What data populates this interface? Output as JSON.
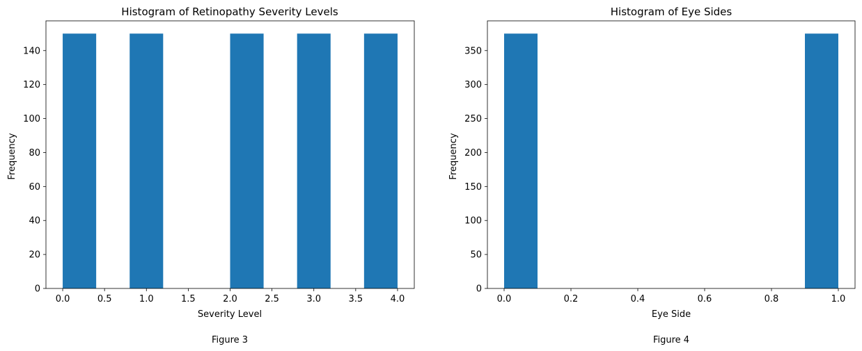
{
  "chart_data": [
    {
      "type": "bar",
      "title": "Histogram of Retinopathy Severity Levels",
      "xlabel": "Severity Level",
      "ylabel": "Frequency",
      "caption": "Figure 3",
      "bar_color": "#1f77b4",
      "xlim": [
        -0.2,
        4.2
      ],
      "ylim": [
        0,
        157.5
      ],
      "x_ticks": [
        0.0,
        0.5,
        1.0,
        1.5,
        2.0,
        2.5,
        3.0,
        3.5,
        4.0
      ],
      "x_tick_labels": [
        "0.0",
        "0.5",
        "1.0",
        "1.5",
        "2.0",
        "2.5",
        "3.0",
        "3.5",
        "4.0"
      ],
      "y_ticks": [
        0,
        20,
        40,
        60,
        80,
        100,
        120,
        140
      ],
      "y_tick_labels": [
        "0",
        "20",
        "40",
        "60",
        "80",
        "100",
        "120",
        "140"
      ],
      "bins": [
        {
          "start": 0.0,
          "end": 0.4,
          "count": 150
        },
        {
          "start": 0.4,
          "end": 0.8,
          "count": 0
        },
        {
          "start": 0.8,
          "end": 1.2,
          "count": 150
        },
        {
          "start": 1.2,
          "end": 1.6,
          "count": 0
        },
        {
          "start": 1.6,
          "end": 2.0,
          "count": 0
        },
        {
          "start": 2.0,
          "end": 2.4,
          "count": 150
        },
        {
          "start": 2.4,
          "end": 2.8,
          "count": 0
        },
        {
          "start": 2.8,
          "end": 3.2,
          "count": 150
        },
        {
          "start": 3.2,
          "end": 3.6,
          "count": 0
        },
        {
          "start": 3.6,
          "end": 4.0,
          "count": 150
        }
      ]
    },
    {
      "type": "bar",
      "title": "Histogram of Eye Sides",
      "xlabel": "Eye Side",
      "ylabel": "Frequency",
      "caption": "Figure 4",
      "bar_color": "#1f77b4",
      "xlim": [
        -0.05,
        1.05
      ],
      "ylim": [
        0,
        393.75
      ],
      "x_ticks": [
        0.0,
        0.2,
        0.4,
        0.6,
        0.8,
        1.0
      ],
      "x_tick_labels": [
        "0.0",
        "0.2",
        "0.4",
        "0.6",
        "0.8",
        "1.0"
      ],
      "y_ticks": [
        0,
        50,
        100,
        150,
        200,
        250,
        300,
        350
      ],
      "y_tick_labels": [
        "0",
        "50",
        "100",
        "150",
        "200",
        "250",
        "300",
        "350"
      ],
      "bins": [
        {
          "start": 0.0,
          "end": 0.1,
          "count": 375
        },
        {
          "start": 0.1,
          "end": 0.2,
          "count": 0
        },
        {
          "start": 0.2,
          "end": 0.3,
          "count": 0
        },
        {
          "start": 0.3,
          "end": 0.4,
          "count": 0
        },
        {
          "start": 0.4,
          "end": 0.5,
          "count": 0
        },
        {
          "start": 0.5,
          "end": 0.6,
          "count": 0
        },
        {
          "start": 0.6,
          "end": 0.7,
          "count": 0
        },
        {
          "start": 0.7,
          "end": 0.8,
          "count": 0
        },
        {
          "start": 0.8,
          "end": 0.9,
          "count": 0
        },
        {
          "start": 0.9,
          "end": 1.0,
          "count": 375
        }
      ]
    }
  ]
}
